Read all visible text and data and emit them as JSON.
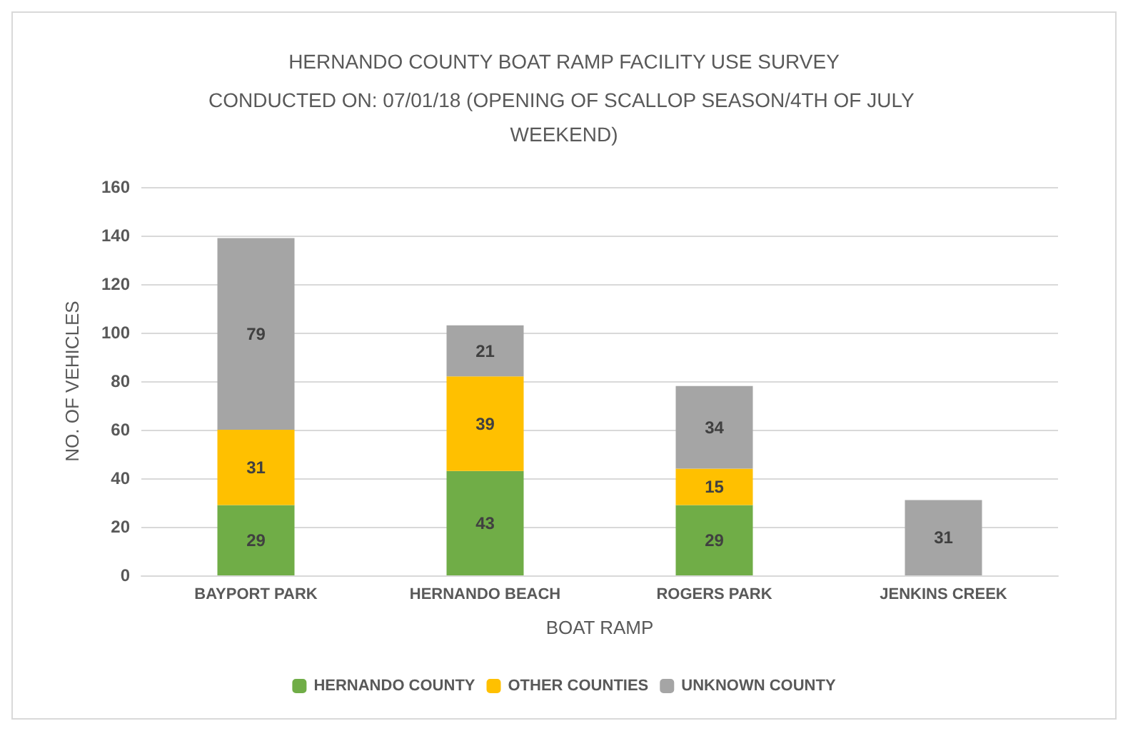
{
  "chart_data": {
    "type": "bar",
    "stacked": true,
    "title": "HERNANDO COUNTY BOAT RAMP FACILITY USE SURVEY",
    "subtitle": "CONDUCTED ON: 07/01/18 (OPENING OF SCALLOP SEASON/4TH OF JULY WEEKEND)",
    "xlabel": "BOAT RAMP",
    "ylabel": "NO. OF VEHICLES",
    "categories": [
      "BAYPORT PARK",
      "HERNANDO BEACH",
      "ROGERS PARK",
      "JENKINS CREEK"
    ],
    "series": [
      {
        "name": "HERNANDO COUNTY",
        "color": "#70ad47",
        "values": [
          29,
          43,
          29,
          null
        ]
      },
      {
        "name": "OTHER COUNTIES",
        "color": "#ffc000",
        "values": [
          31,
          39,
          15,
          null
        ]
      },
      {
        "name": "UNKNOWN COUNTY",
        "color": "#a5a5a5",
        "values": [
          79,
          21,
          34,
          31
        ]
      }
    ],
    "ylim": [
      0,
      160
    ],
    "yticks": [
      0,
      20,
      40,
      60,
      80,
      100,
      120,
      140,
      160
    ],
    "grid": "y",
    "legend": "bottom",
    "data_labels": true
  }
}
